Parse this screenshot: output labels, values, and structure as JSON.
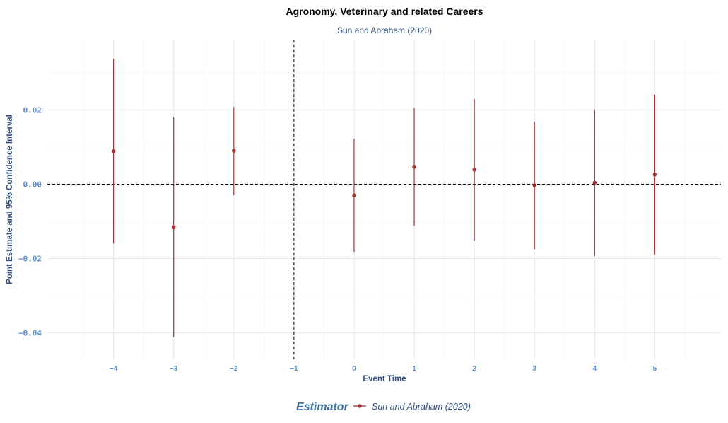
{
  "chart_data": {
    "type": "scatter",
    "title": "Agronomy, Veterinary and related Careers",
    "subtitle": "Sun and Abraham (2020)",
    "xlabel": "Event Time",
    "ylabel": "Point Estimate and 95% Confidence Interval",
    "x_ticks": [
      -4,
      -3,
      -2,
      -1,
      0,
      1,
      2,
      3,
      4,
      5
    ],
    "x_tick_labels": [
      "−4",
      "−3",
      "−2",
      "−1",
      "0",
      "1",
      "2",
      "3",
      "4",
      "5"
    ],
    "y_ticks": [
      -0.04,
      -0.02,
      0.0,
      0.02
    ],
    "y_tick_labels": [
      "−0.04",
      "−0.02",
      "0.00",
      "0.02"
    ],
    "xlim": [
      -5.1,
      6.1
    ],
    "ylim": [
      -0.0471,
      0.0389
    ],
    "reference_lines": {
      "horizontal_y": 0,
      "vertical_x": -1
    },
    "legend": {
      "title": "Estimator",
      "position": "bottom",
      "entries": [
        "Sun and Abraham (2020)"
      ]
    },
    "series": [
      {
        "name": "Sun and Abraham (2020)",
        "color": "#a83232",
        "points": [
          {
            "x": -4,
            "y": 0.0089,
            "lo": -0.016,
            "hi": 0.0337
          },
          {
            "x": -3,
            "y": -0.0116,
            "lo": -0.0411,
            "hi": 0.018
          },
          {
            "x": -2,
            "y": 0.009,
            "lo": -0.0029,
            "hi": 0.0208
          },
          {
            "x": 0,
            "y": -0.003,
            "lo": -0.0182,
            "hi": 0.0122
          },
          {
            "x": 1,
            "y": 0.0047,
            "lo": -0.0112,
            "hi": 0.0206
          },
          {
            "x": 2,
            "y": 0.0039,
            "lo": -0.0151,
            "hi": 0.0229
          },
          {
            "x": 3,
            "y": -0.0003,
            "lo": -0.0175,
            "hi": 0.0168
          },
          {
            "x": 4,
            "y": 0.0004,
            "lo": -0.0193,
            "hi": 0.0201
          },
          {
            "x": 5,
            "y": 0.0026,
            "lo": -0.0188,
            "hi": 0.024
          }
        ]
      }
    ]
  }
}
